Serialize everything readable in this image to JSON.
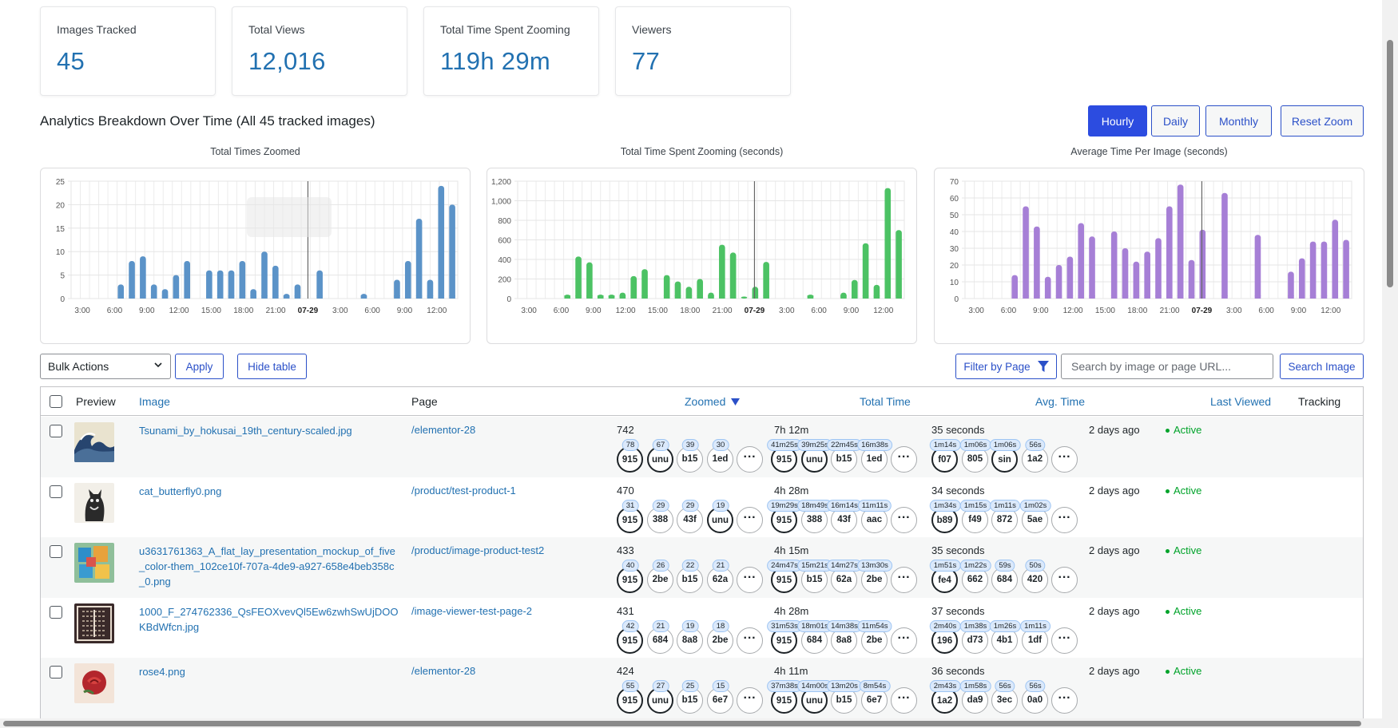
{
  "stats": [
    {
      "label": "Images Tracked",
      "value": "45"
    },
    {
      "label": "Total Views",
      "value": "12,016"
    },
    {
      "label": "Total Time Spent Zooming",
      "value": "119h 29m"
    },
    {
      "label": "Viewers",
      "value": "77"
    }
  ],
  "breakdown": {
    "title": "Analytics Breakdown Over Time (All 45 tracked images)",
    "buttons": {
      "hourly": "Hourly",
      "daily": "Daily",
      "monthly": "Monthly",
      "reset": "Reset Zoom"
    }
  },
  "chart_data": [
    {
      "type": "bar",
      "title": "Total Times Zoomed",
      "color": "#5b93c8",
      "x_tick_labels": [
        "3:00",
        "6:00",
        "9:00",
        "12:00",
        "15:00",
        "18:00",
        "21:00",
        "07-29",
        "3:00",
        "6:00",
        "9:00",
        "12:00"
      ],
      "y_ticks": [
        "0",
        "5",
        "10",
        "15",
        "20",
        "25"
      ],
      "ylim": [
        0,
        25
      ],
      "values": [
        0,
        0,
        0,
        0,
        3,
        8,
        9,
        3,
        2,
        5,
        8,
        0,
        6,
        6,
        6,
        8,
        2,
        10,
        7,
        1,
        3,
        0,
        6,
        0,
        0,
        0,
        1,
        0,
        0,
        4,
        8,
        17,
        4,
        24,
        20
      ]
    },
    {
      "type": "bar",
      "title": "Total Time Spent Zooming (seconds)",
      "color": "#4cc264",
      "x_tick_labels": [
        "3:00",
        "6:00",
        "9:00",
        "12:00",
        "15:00",
        "18:00",
        "21:00",
        "07-29",
        "3:00",
        "6:00",
        "9:00",
        "12:00"
      ],
      "y_ticks": [
        "0",
        "200",
        "400",
        "600",
        "800",
        "1,000",
        "1,200"
      ],
      "ylim": [
        0,
        1200
      ],
      "values": [
        0,
        0,
        0,
        0,
        40,
        430,
        370,
        40,
        40,
        60,
        230,
        300,
        0,
        240,
        175,
        120,
        200,
        60,
        550,
        470,
        20,
        120,
        375,
        0,
        0,
        0,
        40,
        0,
        0,
        60,
        190,
        565,
        140,
        1130,
        700
      ]
    },
    {
      "type": "bar",
      "title": "Average Time Per Image (seconds)",
      "color": "#a67fd6",
      "x_tick_labels": [
        "3:00",
        "6:00",
        "9:00",
        "12:00",
        "15:00",
        "18:00",
        "21:00",
        "07-29",
        "3:00",
        "6:00",
        "9:00",
        "12:00"
      ],
      "y_ticks": [
        "0",
        "10",
        "20",
        "30",
        "40",
        "50",
        "60",
        "70"
      ],
      "ylim": [
        0,
        70
      ],
      "values": [
        0,
        0,
        0,
        0,
        14,
        55,
        43,
        13,
        20,
        25,
        45,
        37,
        0,
        40,
        30,
        22,
        28,
        36,
        55,
        68,
        23,
        41,
        0,
        63,
        0,
        0,
        38,
        0,
        0,
        16,
        24,
        34,
        34,
        47,
        35
      ]
    }
  ],
  "controls": {
    "bulk_actions": "Bulk Actions",
    "apply": "Apply",
    "hide_table": "Hide table",
    "filter_by_page": "Filter by Page",
    "search_placeholder": "Search by image or page URL...",
    "search_button": "Search Image"
  },
  "table": {
    "headers": {
      "preview": "Preview",
      "image": "Image",
      "page": "Page",
      "zoomed": "Zoomed",
      "total_time": "Total Time",
      "avg_time": "Avg. Time",
      "last_viewed": "Last Viewed",
      "tracking": "Tracking"
    },
    "rows": [
      {
        "image": "Tsunami_by_hokusai_19th_century-scaled.jpg",
        "page": "/elementor-28",
        "zoomed": "742",
        "zoomed_viewers": [
          {
            "badge": "78",
            "id": "915"
          },
          {
            "badge": "67",
            "id": "unu"
          },
          {
            "badge": "39",
            "id": "b15"
          },
          {
            "badge": "30",
            "id": "1ed"
          }
        ],
        "total_time": "7h 12m",
        "total_viewers": [
          {
            "badge": "41m25s",
            "id": "915"
          },
          {
            "badge": "39m25s",
            "id": "unu"
          },
          {
            "badge": "22m45s",
            "id": "b15"
          },
          {
            "badge": "16m38s",
            "id": "1ed"
          }
        ],
        "avg_time": "35 seconds",
        "avg_viewers": [
          {
            "badge": "1m14s",
            "id": "f07"
          },
          {
            "badge": "1m06s",
            "id": "805"
          },
          {
            "badge": "1m06s",
            "id": "sin"
          },
          {
            "badge": "56s",
            "id": "1a2"
          }
        ],
        "last_viewed": "2 days ago",
        "tracking": "Active",
        "thumb": "wave"
      },
      {
        "image": "cat_butterfly0.png",
        "page": "/product/test-product-1",
        "zoomed": "470",
        "zoomed_viewers": [
          {
            "badge": "31",
            "id": "915"
          },
          {
            "badge": "29",
            "id": "388"
          },
          {
            "badge": "29",
            "id": "43f"
          },
          {
            "badge": "19",
            "id": "unu"
          }
        ],
        "total_time": "4h 28m",
        "total_viewers": [
          {
            "badge": "19m29s",
            "id": "915"
          },
          {
            "badge": "18m49s",
            "id": "388"
          },
          {
            "badge": "16m14s",
            "id": "43f"
          },
          {
            "badge": "11m11s",
            "id": "aac"
          }
        ],
        "avg_time": "34 seconds",
        "avg_viewers": [
          {
            "badge": "1m34s",
            "id": "b89"
          },
          {
            "badge": "1m15s",
            "id": "f49"
          },
          {
            "badge": "1m11s",
            "id": "872"
          },
          {
            "badge": "1m02s",
            "id": "5ae"
          }
        ],
        "last_viewed": "2 days ago",
        "tracking": "Active",
        "thumb": "cat"
      },
      {
        "image": "u3631761363_A_flat_lay_presentation_mockup_of_five_color-them_102ce10f-707a-4de9-a927-658e4beb358c_0.png",
        "page": "/product/image-product-test2",
        "zoomed": "433",
        "zoomed_viewers": [
          {
            "badge": "40",
            "id": "915"
          },
          {
            "badge": "26",
            "id": "2be"
          },
          {
            "badge": "22",
            "id": "b15"
          },
          {
            "badge": "21",
            "id": "62a"
          }
        ],
        "total_time": "4h 15m",
        "total_viewers": [
          {
            "badge": "24m47s",
            "id": "915"
          },
          {
            "badge": "15m21s",
            "id": "b15"
          },
          {
            "badge": "14m27s",
            "id": "62a"
          },
          {
            "badge": "13m30s",
            "id": "2be"
          }
        ],
        "avg_time": "35 seconds",
        "avg_viewers": [
          {
            "badge": "1m51s",
            "id": "fe4"
          },
          {
            "badge": "1m22s",
            "id": "662"
          },
          {
            "badge": "59s",
            "id": "684"
          },
          {
            "badge": "50s",
            "id": "420"
          }
        ],
        "last_viewed": "2 days ago",
        "tracking": "Active",
        "thumb": "mockup"
      },
      {
        "image": "1000_F_274762336_QsFEOXvevQl5Ew6zwhSwUjDOOKBdWfcn.jpg",
        "page": "/image-viewer-test-page-2",
        "zoomed": "431",
        "zoomed_viewers": [
          {
            "badge": "42",
            "id": "915"
          },
          {
            "badge": "21",
            "id": "684"
          },
          {
            "badge": "19",
            "id": "8a8"
          },
          {
            "badge": "18",
            "id": "2be"
          }
        ],
        "total_time": "4h 28m",
        "total_viewers": [
          {
            "badge": "31m53s",
            "id": "915"
          },
          {
            "badge": "18m01s",
            "id": "684"
          },
          {
            "badge": "14m38s",
            "id": "8a8"
          },
          {
            "badge": "11m54s",
            "id": "2be"
          }
        ],
        "avg_time": "37 seconds",
        "avg_viewers": [
          {
            "badge": "2m40s",
            "id": "196"
          },
          {
            "badge": "1m38s",
            "id": "d73"
          },
          {
            "badge": "1m26s",
            "id": "4b1"
          },
          {
            "badge": "1m11s",
            "id": "1df"
          }
        ],
        "last_viewed": "2 days ago",
        "tracking": "Active",
        "thumb": "pattern"
      },
      {
        "image": "rose4.png",
        "page": "/elementor-28",
        "zoomed": "424",
        "zoomed_viewers": [
          {
            "badge": "55",
            "id": "915"
          },
          {
            "badge": "27",
            "id": "unu"
          },
          {
            "badge": "25",
            "id": "b15"
          },
          {
            "badge": "15",
            "id": "6e7"
          }
        ],
        "total_time": "4h 11m",
        "total_viewers": [
          {
            "badge": "37m38s",
            "id": "915"
          },
          {
            "badge": "14m00s",
            "id": "unu"
          },
          {
            "badge": "13m20s",
            "id": "b15"
          },
          {
            "badge": "8m54s",
            "id": "6e7"
          }
        ],
        "avg_time": "36 seconds",
        "avg_viewers": [
          {
            "badge": "2m43s",
            "id": "1a2"
          },
          {
            "badge": "1m58s",
            "id": "da9"
          },
          {
            "badge": "56s",
            "id": "3ec"
          },
          {
            "badge": "56s",
            "id": "0a0"
          }
        ],
        "last_viewed": "2 days ago",
        "tracking": "Active",
        "thumb": "rose"
      }
    ]
  }
}
